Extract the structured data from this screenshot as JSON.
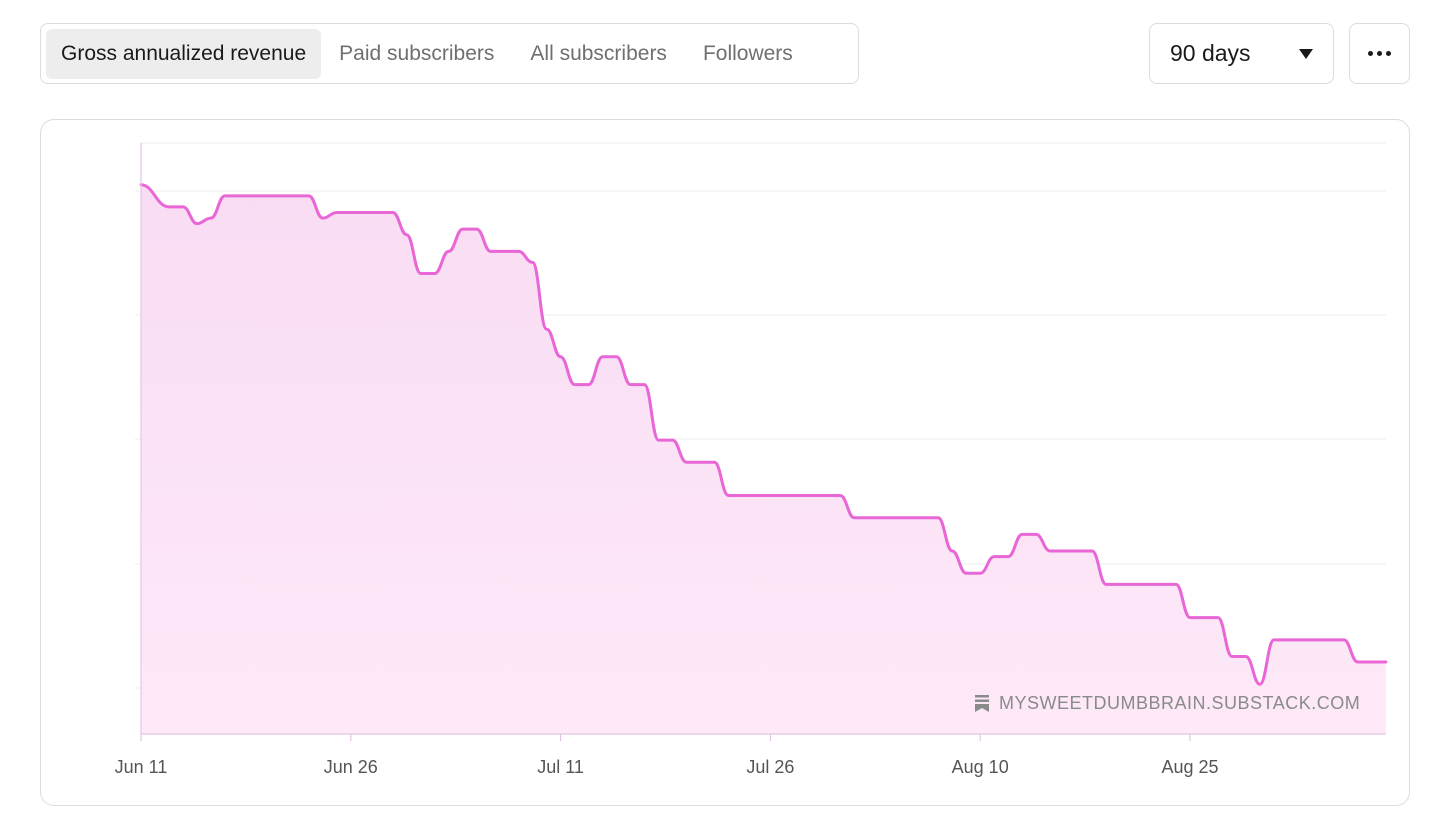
{
  "tabs": [
    {
      "label": "Gross annualized revenue",
      "active": true
    },
    {
      "label": "Paid subscribers",
      "active": false
    },
    {
      "label": "All subscribers",
      "active": false
    },
    {
      "label": "Followers",
      "active": false
    }
  ],
  "range_select": {
    "value": "90 days"
  },
  "watermark": {
    "text": "MYSWEETDUMBBRAIN.SUBSTACK.COM",
    "icon": "substack-bookmark-icon"
  },
  "colors": {
    "line": "#e866d6",
    "fill": "#fbe2f5",
    "grid": "#ececec",
    "axis": "#e2c5e6"
  },
  "chart_data": {
    "type": "area",
    "title": "",
    "xlabel": "",
    "ylabel": "",
    "x_ticks": [
      "Jun 11",
      "Jun 26",
      "Jul 11",
      "Jul 26",
      "Aug 10",
      "Aug 25"
    ],
    "y_ticks_labeled": false,
    "grid": true,
    "ylim": [
      0,
      100
    ],
    "series": [
      {
        "x": [
          "Jun 11",
          "Jun 13",
          "Jun 14",
          "Jun 15",
          "Jun 16",
          "Jun 17",
          "Jun 18",
          "Jun 23",
          "Jun 24",
          "Jun 25",
          "Jun 29",
          "Jun 30",
          "Jul 1",
          "Jul 2",
          "Jul 3",
          "Jul 4",
          "Jul 5",
          "Jul 6",
          "Jul 8",
          "Jul 9",
          "Jul 10",
          "Jul 11",
          "Jul 12",
          "Jul 13",
          "Jul 14",
          "Jul 15",
          "Jul 16",
          "Jul 17",
          "Jul 18",
          "Jul 19",
          "Jul 20",
          "Jul 21",
          "Jul 22",
          "Jul 23",
          "Jul 24",
          "Jul 25",
          "Jul 26",
          "Jul 31",
          "Aug 1",
          "Aug 2",
          "Aug 7",
          "Aug 8",
          "Aug 9",
          "Aug 10",
          "Aug 11",
          "Aug 12",
          "Aug 13",
          "Aug 14",
          "Aug 15",
          "Aug 16",
          "Aug 18",
          "Aug 19",
          "Aug 20",
          "Aug 24",
          "Aug 25",
          "Aug 27",
          "Aug 28",
          "Aug 29",
          "Aug 30",
          "Aug 31",
          "Sep 5",
          "Sep 6",
          "Sep 8"
        ],
        "values": [
          95,
          91,
          91,
          88,
          89,
          93,
          93,
          93,
          89,
          90,
          90,
          86,
          79,
          79,
          83,
          87,
          87,
          83,
          83,
          81,
          69,
          64,
          59,
          59,
          64,
          64,
          59,
          59,
          49,
          49,
          45,
          45,
          45,
          39,
          39,
          39,
          39,
          39,
          35,
          35,
          35,
          29,
          25,
          25,
          28,
          28,
          32,
          32,
          29,
          29,
          29,
          23,
          23,
          23,
          17,
          17,
          10,
          10,
          5,
          13,
          13,
          9,
          9
        ]
      }
    ]
  }
}
